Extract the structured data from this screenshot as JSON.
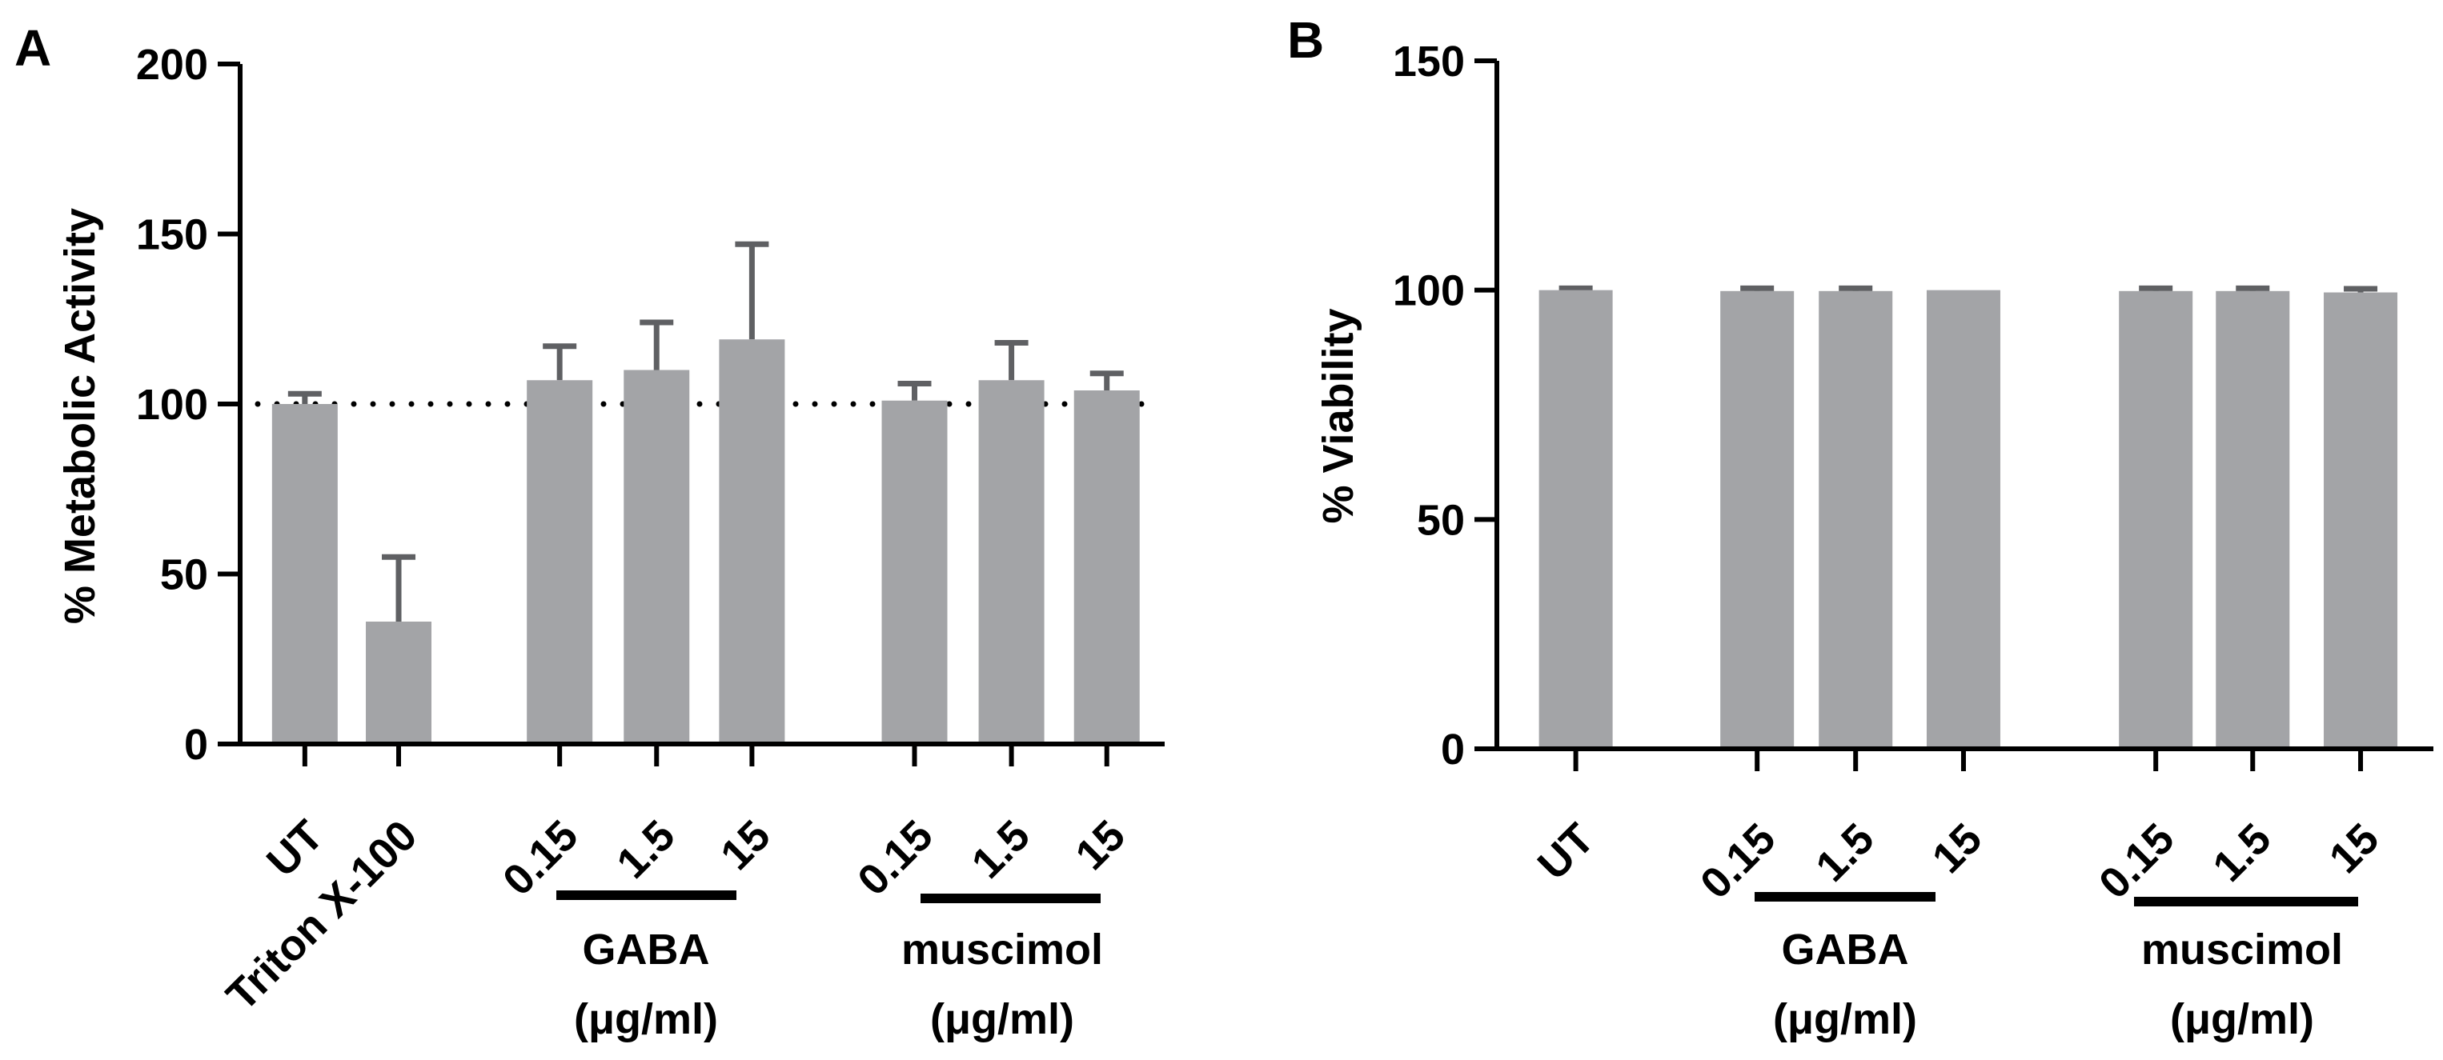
{
  "chart_data": [
    {
      "panel_label": "A",
      "type": "bar",
      "ylabel": "% Metabolic Activity",
      "ylim": [
        0,
        200
      ],
      "yticks": [
        "0",
        "50",
        "100",
        "150",
        "200"
      ],
      "reference_line": 100,
      "bars": [
        {
          "label": "UT",
          "value": 100,
          "error": 3
        },
        {
          "label": "Triton X-100",
          "value": 36,
          "error": 19
        },
        {
          "label": "0.15",
          "value": 107,
          "error": 10
        },
        {
          "label": "1.5",
          "value": 110,
          "error": 14
        },
        {
          "label": "15",
          "value": 119,
          "error": 28
        },
        {
          "label": "0.15",
          "value": 101,
          "error": 5
        },
        {
          "label": "1.5",
          "value": 107,
          "error": 11
        },
        {
          "label": "15",
          "value": 104,
          "error": 5
        }
      ],
      "groups": [
        {
          "name": "GABA",
          "unit": "(μg/ml)"
        },
        {
          "name": "muscimol",
          "unit": "(μg/ml)"
        }
      ]
    },
    {
      "panel_label": "B",
      "type": "bar",
      "ylabel": "% Viability",
      "ylim": [
        0,
        150
      ],
      "yticks": [
        "0",
        "50",
        "100",
        "150"
      ],
      "bars": [
        {
          "label": "UT",
          "value": 100,
          "error": 0.4
        },
        {
          "label": "0.15",
          "value": 99.8,
          "error": 0.6
        },
        {
          "label": "1.5",
          "value": 99.8,
          "error": 0.6
        },
        {
          "label": "15",
          "value": 100,
          "error": 0
        },
        {
          "label": "0.15",
          "value": 99.8,
          "error": 0.6
        },
        {
          "label": "1.5",
          "value": 99.8,
          "error": 0.6
        },
        {
          "label": "15",
          "value": 99.5,
          "error": 0.8
        }
      ],
      "groups": [
        {
          "name": "GABA",
          "unit": "(μg/ml)"
        },
        {
          "name": "muscimol",
          "unit": "(μg/ml)"
        }
      ]
    }
  ],
  "colors": {
    "bar": "#a3a4a7",
    "errorbar": "#5f6063",
    "axis": "#000000"
  }
}
